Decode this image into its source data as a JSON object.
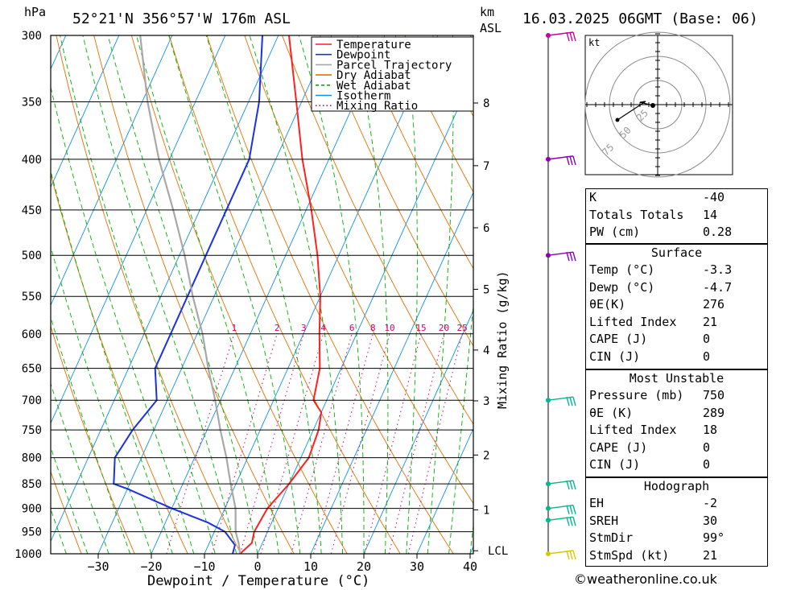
{
  "header": {
    "location": "52°21'N  356°57'W  176m  ASL",
    "date": "16.03.2025  06GMT  (Base: 06)",
    "hpa_label": "hPa",
    "km_label": "km",
    "asl_label": "ASL"
  },
  "legend": [
    "Temperature",
    "Dewpoint",
    "Parcel Trajectory",
    "Dry Adiabat",
    "Wet Adiabat",
    "Isotherm",
    "Mixing Ratio"
  ],
  "colors": {
    "temperature": "#ff2020",
    "dewpoint": "#1a32e0",
    "parcel": "#a8a8a8",
    "dry_adiabat": "#e07000",
    "wet_adiabat": "#00b000",
    "isotherm": "#1090e0",
    "mixing_ratio": "#d0007a"
  },
  "chart_data": {
    "type": "line",
    "xlabel": "Dewpoint / Temperature (°C)",
    "ylabel": "",
    "pressure_levels": [
      300,
      350,
      400,
      450,
      500,
      550,
      600,
      650,
      700,
      750,
      800,
      850,
      900,
      950,
      1000
    ],
    "x_ticks": [
      -30,
      -20,
      -10,
      0,
      10,
      20,
      30,
      40
    ],
    "km_ticks": [
      {
        "label": "8",
        "p": 351
      },
      {
        "label": "7",
        "p": 406
      },
      {
        "label": "6",
        "p": 469
      },
      {
        "label": "5",
        "p": 541
      },
      {
        "label": "4",
        "p": 623
      },
      {
        "label": "3",
        "p": 701
      },
      {
        "label": "2",
        "p": 795
      },
      {
        "label": "1",
        "p": 903
      }
    ],
    "lcl_label": "LCL",
    "lcl_p": 993,
    "mixing_ratio_label": "Mixing Ratio (g/kg)",
    "mixing_ratios": [
      "1",
      "2",
      "3",
      "4",
      "6",
      "8",
      "10",
      "15",
      "20",
      "25"
    ],
    "series": [
      {
        "name": "Temperature",
        "points": [
          [
            -3.3,
            1000
          ],
          [
            -2,
            975
          ],
          [
            -2.5,
            950
          ],
          [
            -2,
            900
          ],
          [
            0,
            850
          ],
          [
            1.5,
            800
          ],
          [
            1,
            750
          ],
          [
            0,
            720
          ],
          [
            -2.5,
            700
          ],
          [
            -4,
            650
          ],
          [
            -7,
            600
          ],
          [
            -10,
            550
          ],
          [
            -14,
            500
          ],
          [
            -19,
            450
          ],
          [
            -25,
            400
          ],
          [
            -31,
            350
          ],
          [
            -38,
            300
          ]
        ]
      },
      {
        "name": "Dewpoint",
        "points": [
          [
            -4.7,
            1000
          ],
          [
            -5,
            980
          ],
          [
            -8,
            950
          ],
          [
            -12,
            930
          ],
          [
            -20,
            900
          ],
          [
            -30,
            860
          ],
          [
            -33,
            850
          ],
          [
            -35,
            800
          ],
          [
            -34,
            750
          ],
          [
            -32,
            700
          ],
          [
            -35,
            650
          ],
          [
            -35,
            600
          ],
          [
            -35,
            550
          ],
          [
            -35,
            500
          ],
          [
            -35,
            450
          ],
          [
            -35,
            400
          ],
          [
            -38,
            350
          ],
          [
            -43,
            300
          ]
        ]
      },
      {
        "name": "Parcel Trajectory",
        "points": [
          [
            -3.3,
            1000
          ],
          [
            -4.5,
            975
          ],
          [
            -6,
            950
          ],
          [
            -8,
            900
          ],
          [
            -11,
            850
          ],
          [
            -14,
            800
          ],
          [
            -17.5,
            750
          ],
          [
            -21,
            700
          ],
          [
            -25,
            650
          ],
          [
            -29,
            600
          ],
          [
            -34,
            550
          ],
          [
            -39,
            500
          ],
          [
            -45,
            450
          ],
          [
            -52,
            400
          ],
          [
            -59,
            350
          ],
          [
            -66,
            300
          ]
        ]
      }
    ],
    "wind_barbs": [
      {
        "p": 300,
        "color": "#c800a0"
      },
      {
        "p": 400,
        "color": "#8c00b4"
      },
      {
        "p": 500,
        "color": "#8c00b4"
      },
      {
        "p": 700,
        "color": "#00b890"
      },
      {
        "p": 850,
        "color": "#00b890"
      },
      {
        "p": 900,
        "color": "#00b890"
      },
      {
        "p": 925,
        "color": "#00b890"
      },
      {
        "p": 1000,
        "color": "#d4c800"
      }
    ],
    "hodograph": {
      "unit": "kt",
      "rings": [
        "25",
        "50",
        "75"
      ]
    }
  },
  "indices": [
    {
      "k": "K",
      "v": "-40"
    },
    {
      "k": "Totals Totals",
      "v": "14"
    },
    {
      "k": "PW (cm)",
      "v": "0.28"
    }
  ],
  "surface": {
    "title": "Surface",
    "rows": [
      {
        "k": "Temp (°C)",
        "v": "-3.3"
      },
      {
        "k": "Dewp (°C)",
        "v": "-4.7"
      },
      {
        "k": "θE(K)",
        "v": "276"
      },
      {
        "k": "Lifted Index",
        "v": "21"
      },
      {
        "k": "CAPE (J)",
        "v": "0"
      },
      {
        "k": "CIN (J)",
        "v": "0"
      }
    ]
  },
  "most_unstable": {
    "title": "Most Unstable",
    "rows": [
      {
        "k": "Pressure (mb)",
        "v": "750"
      },
      {
        "k": "θE (K)",
        "v": "289"
      },
      {
        "k": "Lifted Index",
        "v": "18"
      },
      {
        "k": "CAPE (J)",
        "v": "0"
      },
      {
        "k": "CIN (J)",
        "v": "0"
      }
    ]
  },
  "hodograph_table": {
    "title": "Hodograph",
    "rows": [
      {
        "k": "EH",
        "v": "-2"
      },
      {
        "k": "SREH",
        "v": "30"
      },
      {
        "k": "StmDir",
        "v": "99°"
      },
      {
        "k": "StmSpd (kt)",
        "v": "21"
      }
    ]
  },
  "footer": "©weatheronline.co.uk"
}
